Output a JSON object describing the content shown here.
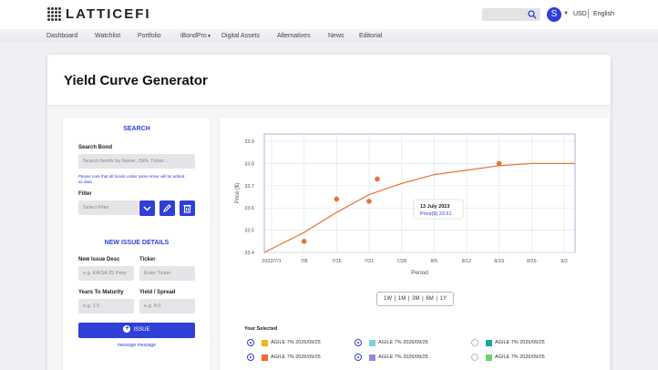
{
  "header": {
    "logo_text": "LATTICEFI",
    "avatar_letter": "S",
    "currency": "USD",
    "language": "English"
  },
  "nav": {
    "items": [
      "Dashboard",
      "Watchlist",
      "Portfolio",
      "iBondPro",
      "Digital Assets",
      "Alternatives",
      "News",
      "Editorial"
    ]
  },
  "page": {
    "title": "Yield Curve Generator"
  },
  "search": {
    "section_title": "SEARCH",
    "bond_label": "Search Bond",
    "bond_placeholder": "Search bonds by Name, ISIN, Ticker...",
    "note": "Please note that all bonds under same ticker will be added as data",
    "filter_label": "Filter",
    "filter_value": "Select Filter"
  },
  "new_issue": {
    "section_title": "NEW ISSUE DETAILS",
    "desc_label": "New Issue Desc",
    "desc_placeholder": "e.g. KAISA 25 Perp",
    "ticker_label": "Ticker",
    "ticker_placeholder": "Enter Ticker",
    "ytm_label": "Years To Maturity",
    "ytm_placeholder": "e.g. 1.5",
    "yield_label": "Yield / Spread",
    "yield_placeholder": "e.g. 8.0",
    "button_label": "ISSUE",
    "message": "message message"
  },
  "chart_data": {
    "type": "scatter",
    "xlabel": "Period",
    "ylabel": "Price ($)",
    "x_ticks": [
      "2022/7/1",
      "7/8",
      "7/15",
      "7/21",
      "7/28",
      "8/5",
      "8/12",
      "8/19",
      "8/26",
      "9/2"
    ],
    "y_ticks": [
      "33.4",
      "33.5",
      "33.6",
      "33.7",
      "33.8",
      "33.9"
    ],
    "ylim": [
      33.4,
      33.9
    ],
    "grid": true,
    "points": [
      {
        "x": "7/8",
        "y": 33.45
      },
      {
        "x": "7/15",
        "y": 33.64
      },
      {
        "x": "7/21",
        "y": 33.63
      },
      {
        "x": "7/21",
        "y": 33.73
      },
      {
        "x": "8/19",
        "y": 33.8
      }
    ],
    "curve": [
      {
        "x": "2022/7/1",
        "y": 33.4
      },
      {
        "x": "7/8",
        "y": 33.49
      },
      {
        "x": "7/15",
        "y": 33.58
      },
      {
        "x": "7/21",
        "y": 33.66
      },
      {
        "x": "7/28",
        "y": 33.71
      },
      {
        "x": "8/5",
        "y": 33.75
      },
      {
        "x": "8/12",
        "y": 33.77
      },
      {
        "x": "8/19",
        "y": 33.79
      },
      {
        "x": "8/26",
        "y": 33.8
      },
      {
        "x": "9/2",
        "y": 33.8
      }
    ],
    "tooltip": {
      "date": "13 July 2023",
      "price": "Price($) 33.61"
    },
    "range_buttons": [
      "1W",
      "1M",
      "3M",
      "6M",
      "1Y"
    ]
  },
  "selected": {
    "title": "Your Selected",
    "items": [
      {
        "label": "AGILE 7% 2026/09/25",
        "color": "#f2b31c",
        "state": "on"
      },
      {
        "label": "AGILE 7% 2026/09/25",
        "color": "#7fd3d0",
        "state": "on"
      },
      {
        "label": "AGILE 7% 2026/09/25",
        "color": "#1aa4a0",
        "state": "off"
      },
      {
        "label": "AGILE 7% 2026/09/25",
        "color": "#f2673a",
        "state": "on"
      },
      {
        "label": "AGILE 7% 2026/09/25",
        "color": "#9c86e0",
        "state": "on"
      },
      {
        "label": "AGILE 7% 2026/09/25",
        "color": "#6fd16d",
        "state": "off"
      }
    ]
  },
  "colors": {
    "accent": "#2f3fd8",
    "series": "#e8743b",
    "plot_border": "#a9b3d6"
  }
}
